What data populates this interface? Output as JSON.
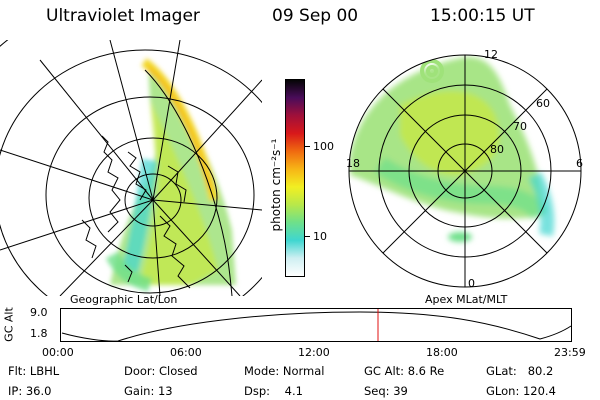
{
  "header": {
    "instrument": "Ultraviolet Imager",
    "date": "09 Sep 00",
    "time": "15:00:15 UT"
  },
  "left_map": {
    "label": "Geographic Lat/Lon"
  },
  "right_map": {
    "label": "Apex MLat/MLT",
    "mlt_labels": [
      "12",
      "18",
      "6",
      "0"
    ],
    "lat_labels": [
      "60",
      "70",
      "80"
    ]
  },
  "colorbar": {
    "unit_label": "photon cm⁻²s⁻¹",
    "tick_labels": [
      "100",
      "10"
    ],
    "colors": [
      "#ffffff",
      "#cfeff2",
      "#3fd6d0",
      "#6ee08a",
      "#b8e84a",
      "#f2ef22",
      "#f7b516",
      "#f06a10",
      "#d8181a",
      "#a0103a",
      "#4a0c5a",
      "#050505"
    ]
  },
  "altitude_panel": {
    "ylabel": "GC Alt",
    "y_ticks": [
      "9.0",
      "1.8"
    ],
    "x_ticks": [
      "00:00",
      "06:00",
      "12:00",
      "18:00",
      "23:59"
    ],
    "marker_color": "#e01010"
  },
  "info": {
    "flt": "Flt: LBHL",
    "ip": "IP: 36.0",
    "door": "Door: Closed",
    "gain": "Gain: 13",
    "mode": "Mode: Normal",
    "dsp": "Dsp:    4.1",
    "gc_alt": "GC Alt: 8.6 Re",
    "seq": "Seq: 39",
    "glat": "GLat:   80.2",
    "glon": "GLon: 120.4"
  }
}
